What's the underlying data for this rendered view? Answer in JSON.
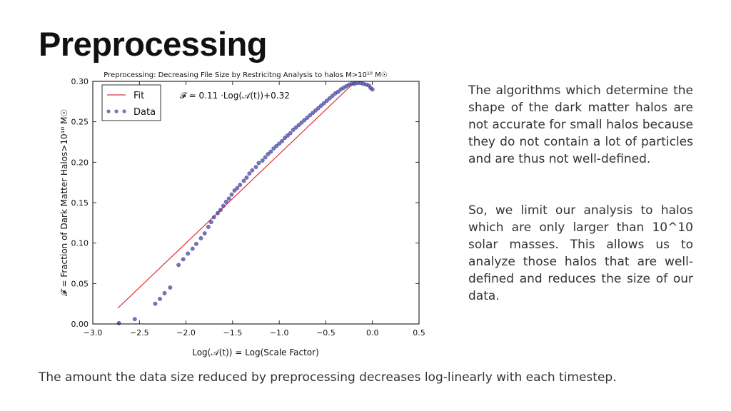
{
  "slide": {
    "title": "Preprocessing",
    "paragraphs": [
      "The algorithms which determine the shape of the dark matter halos are not accurate for small halos because they do not contain a lot of particles and are thus not well-defined.",
      "So, we limit our analysis to halos which are only larger than 10^10 solar masses. This allows us to analyze those halos that are well-defined and reduces the size of our data."
    ],
    "caption": "The amount the data size reduced by preprocessing decreases log-linearly with each timestep."
  },
  "chart_data": {
    "type": "scatter",
    "title": "Preprocessing: Decreasing File Size by Restricitng Analysis to halos M>10¹⁰ M☉",
    "xlabel": "Log(𝒜(t)) = Log(Scale Factor)",
    "ylabel": "𝓕 = Fraction of Dark Matter Halos>10¹⁰ M☉",
    "xlim": [
      -3.0,
      0.5
    ],
    "ylim": [
      0.0,
      0.3
    ],
    "xticks": [
      "−3.0",
      "−2.5",
      "−2.0",
      "−1.5",
      "−1.0",
      "−0.5",
      "0.0",
      "0.5"
    ],
    "yticks": [
      "0.00",
      "0.05",
      "0.10",
      "0.15",
      "0.20",
      "0.25",
      "0.30"
    ],
    "grid": false,
    "legend_position": "top-left",
    "annotation": "𝓕 = 0.11 ·Log(𝒜(t))+0.32",
    "fit": {
      "name": "Fit",
      "slope": 0.11,
      "intercept": 0.32,
      "x_range": [
        -2.73,
        -0.18
      ],
      "color": "#e03030"
    },
    "data": {
      "name": "Data",
      "color": "#3a3a9a",
      "x": [
        -2.72,
        -2.55,
        -2.33,
        -2.28,
        -2.23,
        -2.17,
        -2.08,
        -2.03,
        -1.98,
        -1.93,
        -1.89,
        -1.84,
        -1.8,
        -1.76,
        -1.73,
        -1.7,
        -1.66,
        -1.63,
        -1.6,
        -1.57,
        -1.54,
        -1.51,
        -1.48,
        -1.45,
        -1.42,
        -1.38,
        -1.35,
        -1.32,
        -1.29,
        -1.25,
        -1.22,
        -1.18,
        -1.15,
        -1.12,
        -1.09,
        -1.06,
        -1.03,
        -1.0,
        -0.97,
        -0.94,
        -0.91,
        -0.88,
        -0.85,
        -0.82,
        -0.79,
        -0.76,
        -0.73,
        -0.7,
        -0.67,
        -0.64,
        -0.61,
        -0.58,
        -0.55,
        -0.52,
        -0.49,
        -0.46,
        -0.43,
        -0.4,
        -0.37,
        -0.34,
        -0.31,
        -0.28,
        -0.25,
        -0.22,
        -0.19,
        -0.16,
        -0.13,
        -0.1,
        -0.07,
        -0.04,
        -0.02,
        0.0
      ],
      "y": [
        0.001,
        0.006,
        0.025,
        0.031,
        0.038,
        0.045,
        0.073,
        0.08,
        0.087,
        0.093,
        0.099,
        0.106,
        0.112,
        0.12,
        0.126,
        0.132,
        0.137,
        0.141,
        0.146,
        0.151,
        0.155,
        0.16,
        0.165,
        0.168,
        0.172,
        0.177,
        0.181,
        0.186,
        0.19,
        0.194,
        0.199,
        0.202,
        0.206,
        0.21,
        0.213,
        0.217,
        0.22,
        0.223,
        0.226,
        0.23,
        0.233,
        0.236,
        0.24,
        0.243,
        0.246,
        0.249,
        0.252,
        0.255,
        0.258,
        0.261,
        0.264,
        0.267,
        0.27,
        0.273,
        0.276,
        0.279,
        0.282,
        0.285,
        0.287,
        0.29,
        0.292,
        0.294,
        0.296,
        0.297,
        0.297,
        0.298,
        0.298,
        0.297,
        0.296,
        0.295,
        0.292,
        0.29
      ]
    }
  }
}
